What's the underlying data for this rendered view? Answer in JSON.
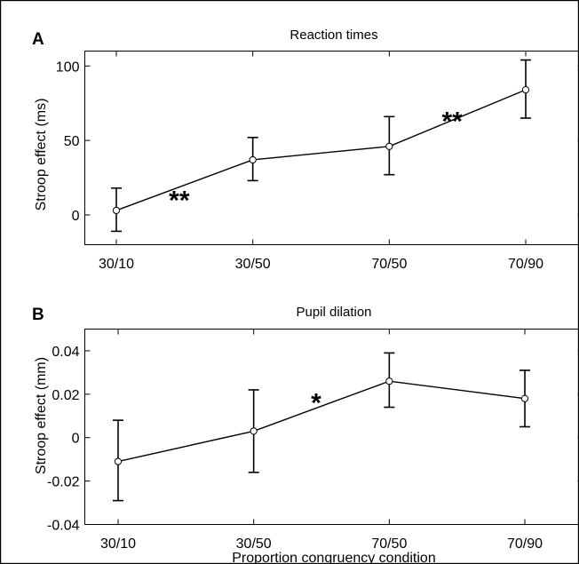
{
  "chart_data": [
    {
      "type": "line",
      "panel_label": "A",
      "title": "Reaction times",
      "ylabel": "Stroop effect (ms)",
      "xlabel": "",
      "categories": [
        "30/10",
        "30/50",
        "70/50",
        "70/90"
      ],
      "ylim": [
        -20,
        110
      ],
      "yticks": [
        0,
        50,
        100
      ],
      "ytick_labels": [
        "0",
        "50",
        "100"
      ],
      "series": [
        {
          "values": [
            3,
            37,
            46,
            84
          ],
          "error_low": [
            -11,
            23,
            27,
            65
          ],
          "error_high": [
            18,
            52,
            66,
            104
          ]
        }
      ],
      "annotations": [
        {
          "text": "**",
          "x_between": [
            0,
            1
          ],
          "y": 17
        },
        {
          "text": "**",
          "x_between": [
            2,
            3
          ],
          "y": 70
        }
      ]
    },
    {
      "type": "line",
      "panel_label": "B",
      "title": "Pupil dilation",
      "ylabel": "Stroop effect (mm)",
      "xlabel": "Proportion congruency condition",
      "categories": [
        "30/10",
        "30/50",
        "70/50",
        "70/90"
      ],
      "ylim": [
        -0.04,
        0.05
      ],
      "yticks": [
        -0.04,
        -0.02,
        0,
        0.02,
        0.04
      ],
      "ytick_labels": [
        "-0.04",
        "-0.02",
        "0",
        "0.02",
        "0.04"
      ],
      "series": [
        {
          "values": [
            -0.011,
            0.003,
            0.026,
            0.018
          ],
          "error_low": [
            -0.029,
            -0.016,
            0.014,
            0.005
          ],
          "error_high": [
            0.008,
            0.022,
            0.039,
            0.031
          ]
        }
      ],
      "annotations": [
        {
          "text": "*",
          "x_between": [
            1,
            2
          ],
          "y": 0.021
        }
      ]
    }
  ]
}
